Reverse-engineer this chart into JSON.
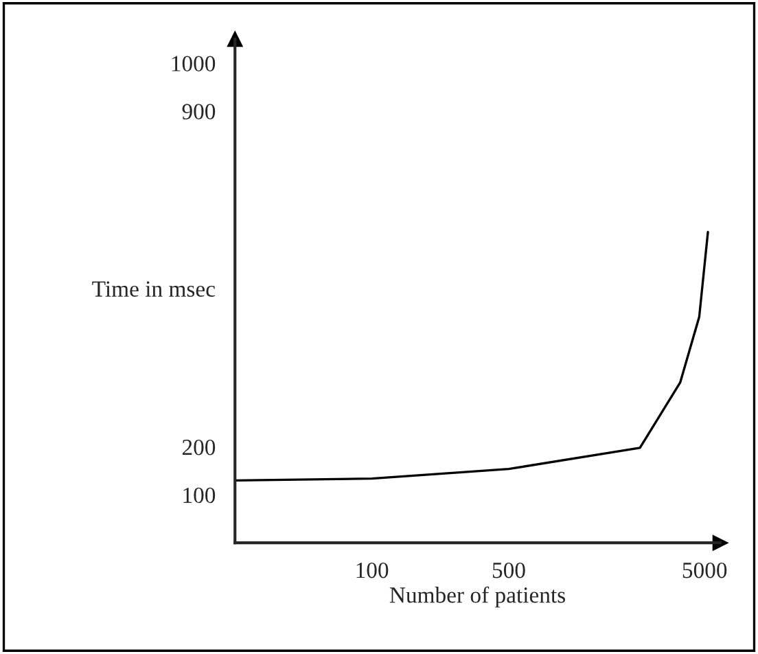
{
  "chart_data": {
    "type": "line",
    "xlabel": "Number of patients",
    "ylabel": "Time in msec",
    "x": [
      20,
      100,
      500,
      2338,
      3751,
      4694,
      5200
    ],
    "values": [
      130,
      134,
      154,
      198,
      334,
      471,
      648
    ],
    "color": "#000000",
    "log": "x",
    "xlim": [
      20,
      6000
    ],
    "xticks": [
      100,
      500,
      5000
    ],
    "ylim": [
      0,
      1050
    ],
    "yticks": [
      100,
      200,
      900,
      1000
    ],
    "grid": false,
    "marker": "none",
    "line_style": "solid"
  }
}
